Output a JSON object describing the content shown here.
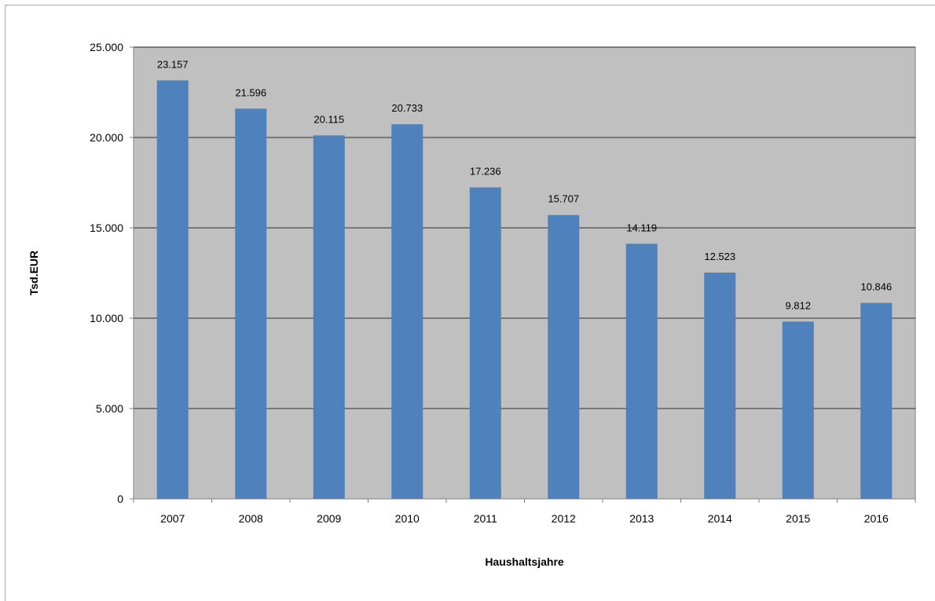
{
  "chart_data": {
    "type": "bar",
    "title": "",
    "xlabel": "Haushaltsjahre",
    "ylabel": "Tsd.EUR",
    "categories": [
      "2007",
      "2008",
      "2009",
      "2010",
      "2011",
      "2012",
      "2013",
      "2014",
      "2015",
      "2016"
    ],
    "values": [
      23157,
      21596,
      20115,
      20733,
      17236,
      15707,
      14119,
      12523,
      9812,
      10846
    ],
    "value_labels": [
      "23.157",
      "21.596",
      "20.115",
      "20.733",
      "17.236",
      "15.707",
      "14.119",
      "12.523",
      "9.812",
      "10.846"
    ],
    "ylim": [
      0,
      25000
    ],
    "yticks": [
      0,
      5000,
      10000,
      15000,
      20000,
      25000
    ],
    "ytick_labels": [
      "0",
      "5.000",
      "10.000",
      "15.000",
      "20.000",
      "25.000"
    ],
    "grid": true,
    "legend": "none",
    "colors": {
      "bar": "#4f81bd",
      "plot_background": "#c0c0c0",
      "gridline": "#000000"
    }
  }
}
